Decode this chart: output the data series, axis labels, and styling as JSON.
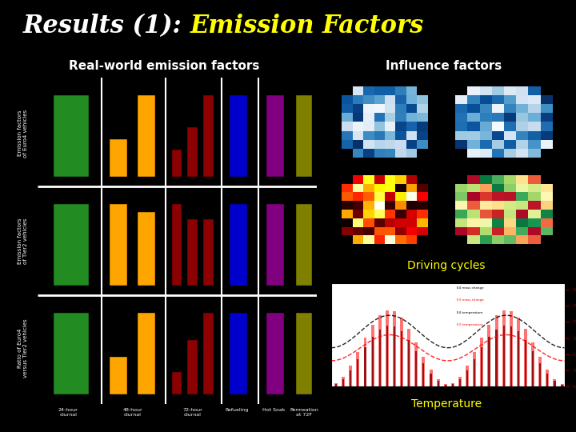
{
  "title_part1": "Results (1): ",
  "title_part2": "Emission Factors",
  "title_color1": "#ffffff",
  "title_color2": "#ffff00",
  "title_fontsize": 22,
  "background_color": "#000000",
  "left_panel_title": "Real-world emission factors",
  "right_panel_title": "Influence factors",
  "driving_cycles_label": "Driving cycles",
  "temperature_label": "Temperature",
  "panel_labels_color": "#ffffff",
  "sub_labels_color": "#ffff00",
  "green": "#228B22",
  "orange": "#FFA500",
  "dark_red": "#8B0000",
  "blue": "#0000CD",
  "purple": "#800080",
  "olive": "#808000"
}
